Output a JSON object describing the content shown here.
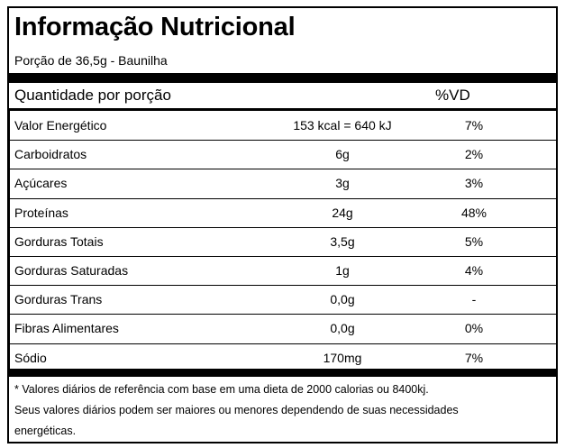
{
  "label": {
    "title": "Informação Nutricional",
    "serving": "Porção de 36,5g - Baunilha",
    "header_label": "Quantidade por porção",
    "header_vd": "%VD",
    "rows": [
      {
        "name": "Valor Energético",
        "amount": "153 kcal = 640 kJ",
        "vd": "7%"
      },
      {
        "name": "Carboidratos",
        "amount": "6g",
        "vd": "2%"
      },
      {
        "name": "Açúcares",
        "amount": "3g",
        "vd": "3%"
      },
      {
        "name": "Proteínas",
        "amount": "24g",
        "vd": "48%"
      },
      {
        "name": "Gorduras Totais",
        "amount": "3,5g",
        "vd": "5%"
      },
      {
        "name": "Gorduras Saturadas",
        "amount": "1g",
        "vd": "4%"
      },
      {
        "name": "Gorduras Trans",
        "amount": "0,0g",
        "vd": "-"
      },
      {
        "name": "Fibras Alimentares",
        "amount": "0,0g",
        "vd": "0%"
      },
      {
        "name": "Sódio",
        "amount": "170mg",
        "vd": "7%"
      }
    ],
    "footnote": [
      "* Valores diários de referência com base em uma dieta de 2000 calorias ou 8400kj.",
      "Seus valores diários podem ser maiores ou menores dependendo de suas necessidades",
      "energéticas."
    ]
  }
}
